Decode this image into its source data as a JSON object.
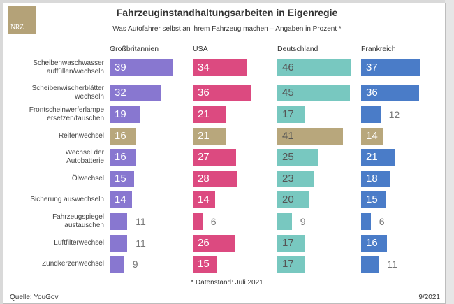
{
  "logo": {
    "text": "NRZ",
    "color": "#b4a278"
  },
  "chart_data": {
    "type": "bar",
    "orientation": "horizontal",
    "title": "Fahrzeuginstandhaltungsarbeiten in Eigenregie",
    "subtitle": "Was Autofahrer selbst an ihrem Fahrzeug machen – Angaben in Prozent *",
    "categories": [
      "Scheibenwaschwasser auffüllen/wechseln",
      "Scheibenwischerblätter wechseln",
      "Frontscheinwerferlampe ersetzen/tauschen",
      "Reifenwechsel",
      "Wechsel der Autobatterie",
      "Ölwechsel",
      "Sicherung auswechseln",
      "Fahrzeugspiegel austauschen",
      "Luftfilterwechsel",
      "Zündkerzenwechsel"
    ],
    "category_lines": [
      [
        "Scheibenwaschwasser",
        "auffüllen/wechseln"
      ],
      [
        "Scheibenwischerblätter",
        "wechseln"
      ],
      [
        "Frontscheinwerferlampe",
        "ersetzen/tauschen"
      ],
      [
        "Reifenwechsel"
      ],
      [
        "Wechsel der",
        "Autobatterie"
      ],
      [
        "Ölwechsel"
      ],
      [
        "Sicherung auswechseln"
      ],
      [
        "Fahrzeugspiegel",
        "austauschen"
      ],
      [
        "Luftfilterwechsel"
      ],
      [
        "Zündkerzenwechsel"
      ]
    ],
    "highlight_category": "Reifenwechsel",
    "highlight_color": "#b8a77c",
    "series": [
      {
        "name": "Großbritannien",
        "color": "#8877d0",
        "values": [
          39,
          32,
          19,
          16,
          16,
          15,
          14,
          11,
          11,
          9
        ]
      },
      {
        "name": "USA",
        "color": "#dc4a80",
        "values": [
          34,
          36,
          21,
          21,
          27,
          28,
          14,
          6,
          26,
          15
        ]
      },
      {
        "name": "Deutschland",
        "color": "#78c8c0",
        "values": [
          46,
          45,
          17,
          41,
          25,
          23,
          20,
          9,
          17,
          17
        ]
      },
      {
        "name": "Frankreich",
        "color": "#4a7cc8",
        "values": [
          37,
          36,
          12,
          14,
          21,
          18,
          15,
          6,
          16,
          11
        ]
      }
    ],
    "unit": "Prozent",
    "xlim": [
      0,
      50
    ],
    "grid": false,
    "legend": "column-headers"
  },
  "footer": {
    "note": "* Datenstand: Juli 2021",
    "source": "Quelle: YouGov",
    "date": "9/2021"
  }
}
